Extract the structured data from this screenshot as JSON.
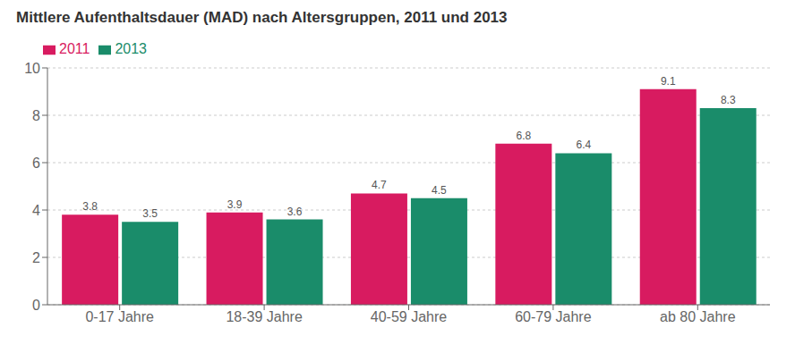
{
  "chart_data": {
    "type": "bar",
    "title": "Mittlere Aufenthaltsdauer (MAD) nach Altersgruppen, 2011 und 2013",
    "categories": [
      "0-17 Jahre",
      "18-39 Jahre",
      "40-59 Jahre",
      "60-79 Jahre",
      "ab 80 Jahre"
    ],
    "series": [
      {
        "name": "2011",
        "color": "#D81B60",
        "values": [
          3.8,
          3.9,
          4.7,
          6.8,
          9.1
        ]
      },
      {
        "name": "2013",
        "color": "#1A8C6A",
        "values": [
          3.5,
          3.6,
          4.5,
          6.4,
          8.3
        ]
      }
    ],
    "ylim": [
      0,
      10
    ],
    "yticks": [
      0,
      2,
      4,
      6,
      8,
      10
    ],
    "grid": true,
    "legend": "upper left",
    "data_labels": true
  }
}
